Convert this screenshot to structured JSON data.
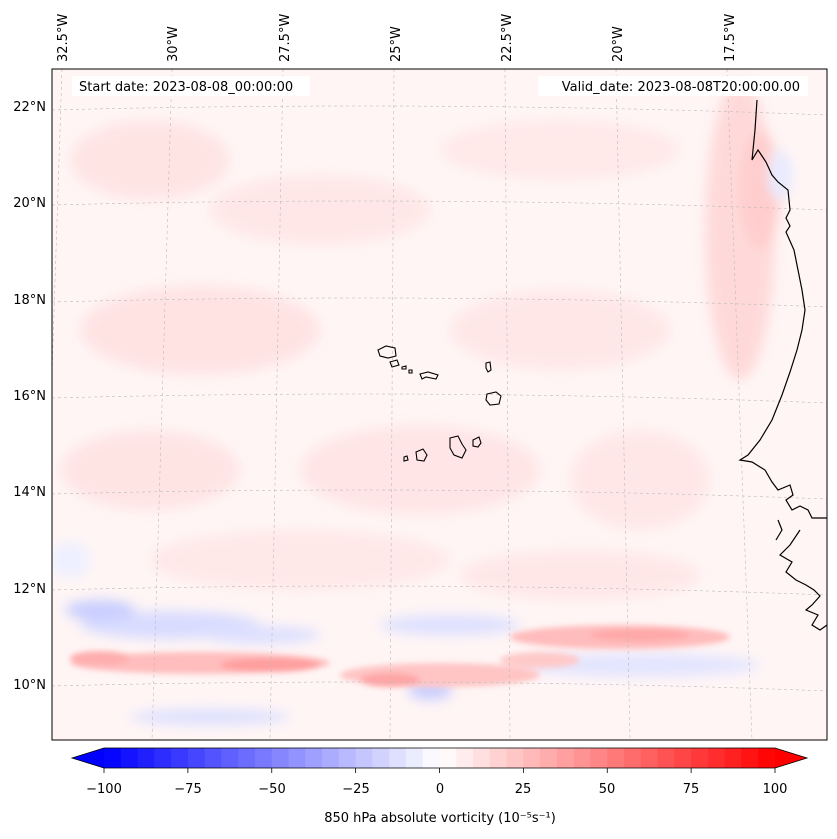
{
  "map": {
    "start_date": "Start date: 2023-08-08_00:00:00",
    "valid_date": "Valid_date: 2023-08-08T20:00:00.00",
    "lon_labels": [
      "32.5°W",
      "30°W",
      "27.5°W",
      "25°W",
      "22.5°W",
      "20°W",
      "17.5°W"
    ],
    "lat_labels": [
      "22°N",
      "20°N",
      "18°N",
      "16°N",
      "14°N",
      "12°N",
      "10°N"
    ],
    "features": [
      "Cape Verde islands",
      "West African coastline"
    ]
  },
  "colorbar": {
    "label": "850 hPa absolute vorticity (10⁻⁵s⁻¹)",
    "ticks": [
      "−100",
      "−75",
      "−50",
      "−25",
      "0",
      "25",
      "50",
      "75",
      "100"
    ],
    "min": -100,
    "max": 100,
    "colormap": "bwr",
    "low_color": "#0000ff",
    "mid_color": "#ffffff",
    "high_color": "#ff0000"
  }
}
